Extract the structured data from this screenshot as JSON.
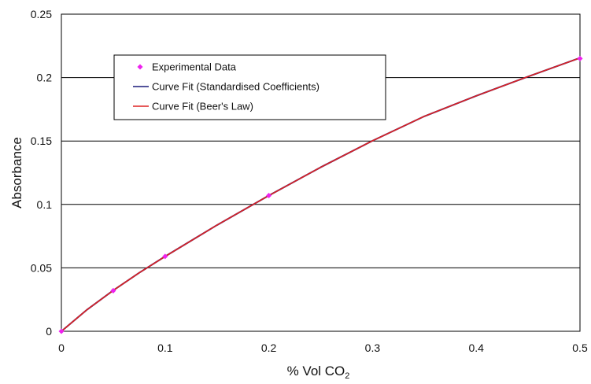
{
  "chart_data": {
    "type": "line",
    "title": "",
    "xlabel": "% Vol CO",
    "xlabel_subscript": "2",
    "ylabel": "Absorbance",
    "xlim": [
      0,
      0.5
    ],
    "ylim": [
      0,
      0.25
    ],
    "xticks": [
      0,
      0.1,
      0.2,
      0.3,
      0.4,
      0.5
    ],
    "xtick_labels": [
      "0",
      "0.1",
      "0.2",
      "0.3",
      "0.4",
      "0.5"
    ],
    "yticks": [
      0,
      0.05,
      0.1,
      0.15,
      0.2,
      0.25
    ],
    "ytick_labels": [
      "0",
      "0.05",
      "0.1",
      "0.15",
      "0.2",
      "0.25"
    ],
    "grid": "horizontal",
    "legend_position": "top-left",
    "series": [
      {
        "name": "Experimental Data",
        "kind": "scatter",
        "color": "#ee22ee",
        "x": [
          0,
          0.05,
          0.1,
          0.2,
          0.5
        ],
        "y": [
          0,
          0.032,
          0.059,
          0.107,
          0.215
        ]
      },
      {
        "name": "Curve Fit (Standardised Coefficients)",
        "kind": "line",
        "color": "#1a1a7a",
        "x": [
          0,
          0.025,
          0.05,
          0.075,
          0.1,
          0.15,
          0.2,
          0.25,
          0.3,
          0.35,
          0.4,
          0.45,
          0.5
        ],
        "y": [
          0,
          0.0172,
          0.0322,
          0.0461,
          0.059,
          0.0837,
          0.107,
          0.1293,
          0.1502,
          0.1695,
          0.1856,
          0.2008,
          0.2155
        ]
      },
      {
        "name": "Curve Fit (Beer's Law)",
        "kind": "line",
        "color": "#dd2222",
        "x": [
          0,
          0.025,
          0.05,
          0.075,
          0.1,
          0.15,
          0.2,
          0.25,
          0.3,
          0.35,
          0.4,
          0.45,
          0.5
        ],
        "y": [
          0,
          0.0172,
          0.0322,
          0.0461,
          0.059,
          0.0837,
          0.107,
          0.1293,
          0.1502,
          0.1695,
          0.1856,
          0.2008,
          0.2155
        ]
      }
    ]
  }
}
